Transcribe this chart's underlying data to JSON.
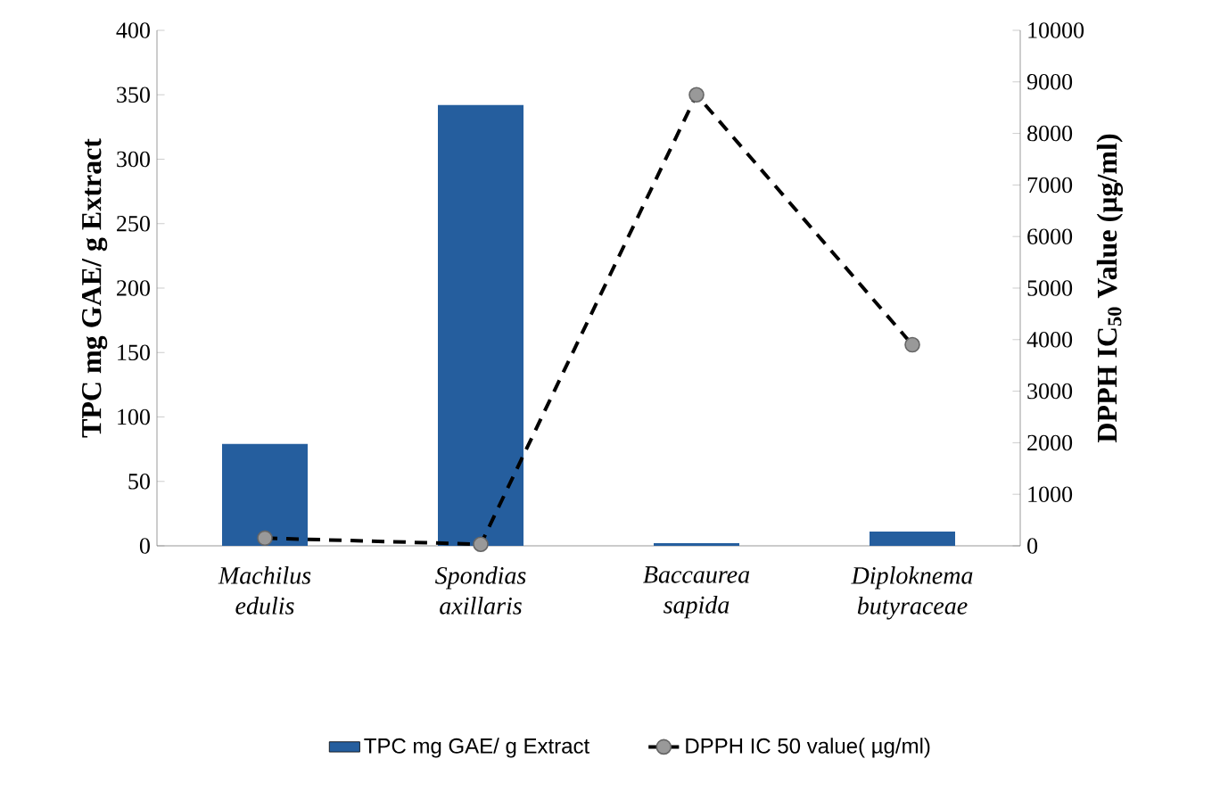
{
  "chart_data": {
    "type": "bar",
    "categories": [
      "Machilus edulis",
      "Spondias axillaris",
      "Baccaurea sapida",
      "Diploknema butyraceae"
    ],
    "ylabel": "TPC mg GAE/ g Extract",
    "y2label": "DPPH IC$_{50}$ Value (µg/ml)",
    "ylim": [
      0,
      400
    ],
    "yticks": [
      0,
      50,
      100,
      150,
      200,
      250,
      300,
      350,
      400
    ],
    "y2lim": [
      0,
      10000
    ],
    "y2ticks": [
      0,
      1000,
      2000,
      3000,
      4000,
      5000,
      6000,
      7000,
      8000,
      9000,
      10000
    ],
    "legend": "bottom",
    "marker": "circle",
    "line_style": "dashed",
    "series": [
      {
        "name": "TPC mg GAE/ g Extract",
        "color": "#255e9e",
        "values": [
          79,
          342,
          2,
          11
        ]
      },
      {
        "name": "DPPH IC 50 value( µg/ml)",
        "type": "line",
        "axis": "y2",
        "color": "#000000",
        "values": [
          150,
          30,
          8750,
          3900
        ]
      }
    ]
  }
}
